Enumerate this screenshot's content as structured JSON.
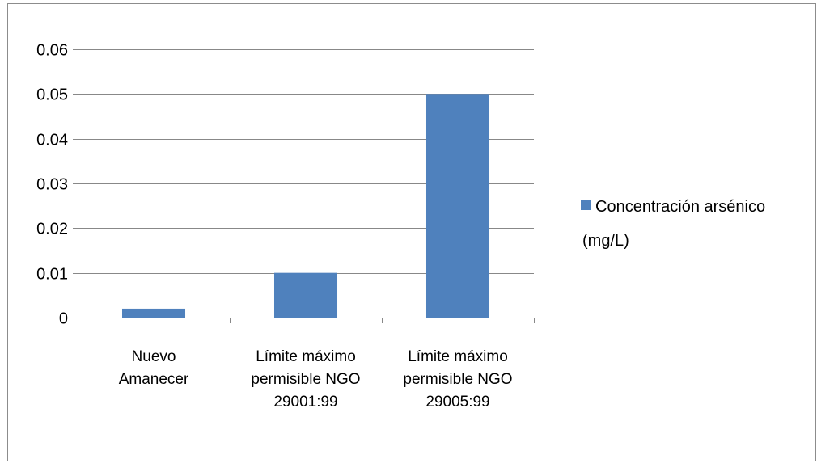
{
  "chart_data": {
    "type": "bar",
    "categories": [
      [
        "Nuevo",
        "Amanecer"
      ],
      [
        "Límite máximo",
        "permisible NGO",
        "29001:99"
      ],
      [
        "Límite máximo",
        "permisible NGO",
        "29005:99"
      ]
    ],
    "series": [
      {
        "name": "Concentración arsénico (mg/L)",
        "name_lines": [
          "Concentración arsénico",
          "(mg/L)"
        ],
        "values": [
          0.002,
          0.01,
          0.05
        ],
        "color": "#4f81bd"
      }
    ],
    "y_ticks": [
      "0",
      "0.01",
      "0.02",
      "0.03",
      "0.04",
      "0.05",
      "0.06"
    ],
    "ylim": [
      0,
      0.06
    ],
    "title": "",
    "xlabel": "",
    "ylabel": "",
    "grid": true,
    "legend_position": "right",
    "colors": {
      "bar": "#4f81bd",
      "gridline": "#888888",
      "axis": "#888888",
      "frame": "#8c8c8c"
    }
  }
}
